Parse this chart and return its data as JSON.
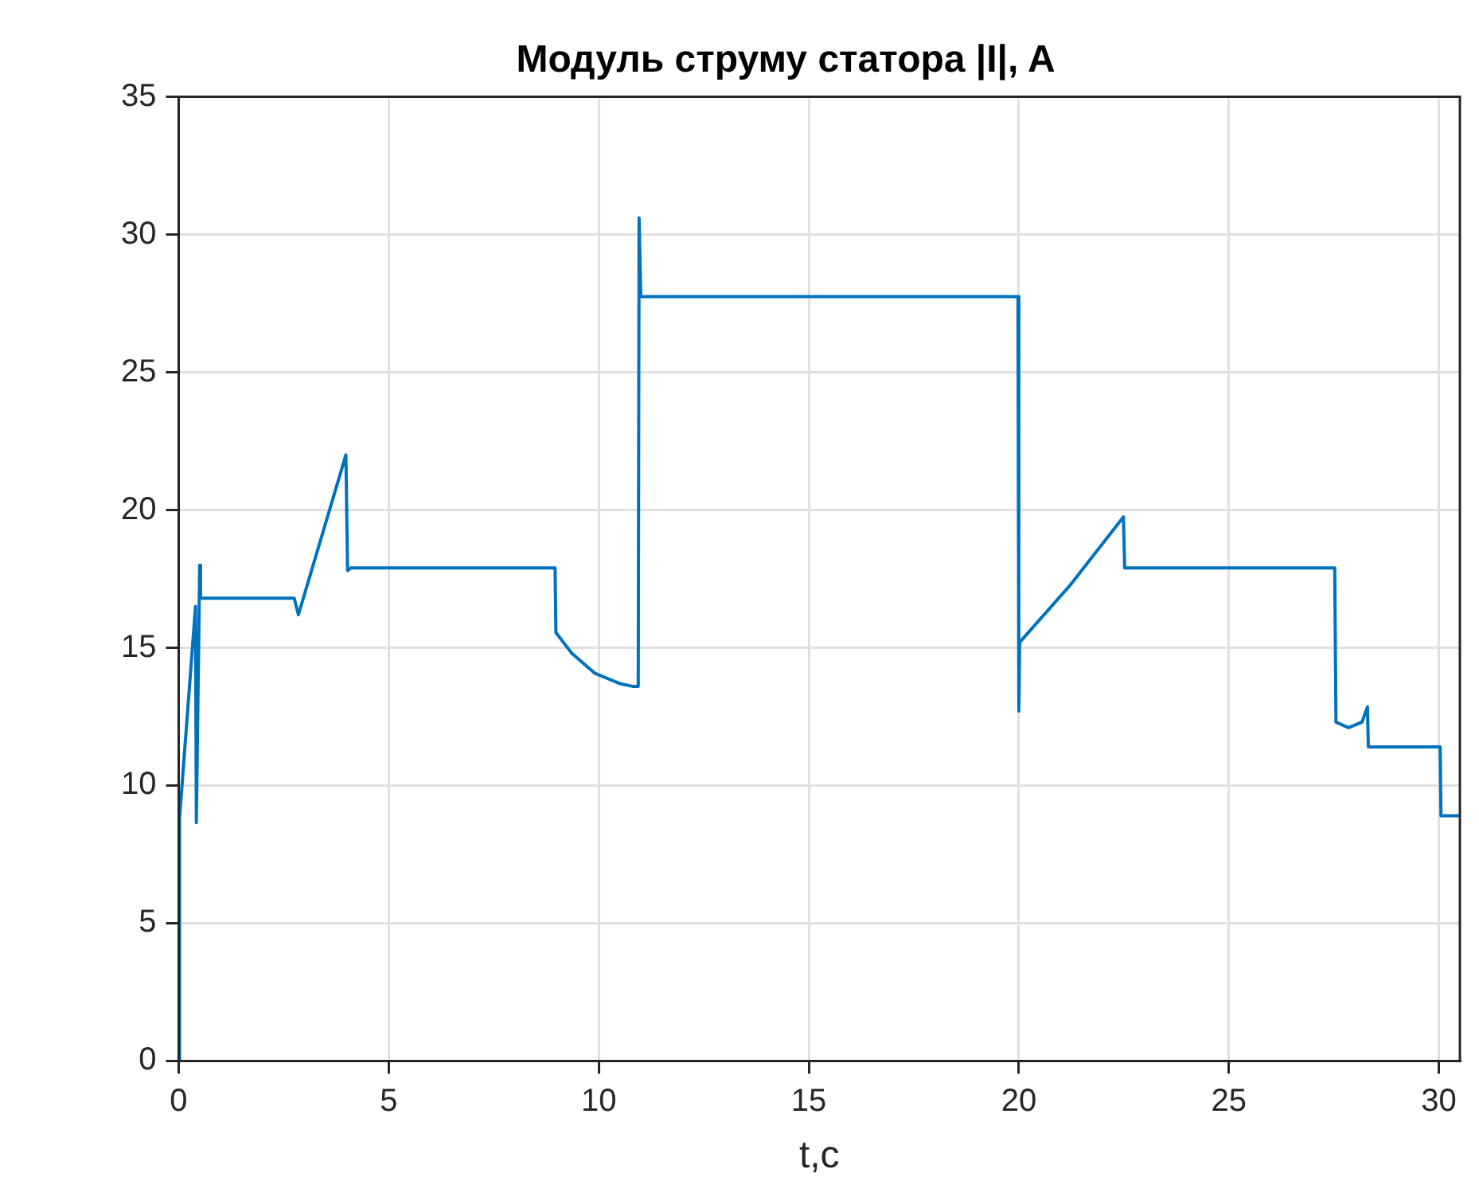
{
  "chart_data": {
    "type": "line",
    "title": "Модуль струму статора |I|, A",
    "xlabel": "t,c",
    "xlim": [
      0,
      30.5
    ],
    "xticks": [
      0,
      5,
      10,
      15,
      20,
      25,
      30
    ],
    "ylim": [
      0,
      35
    ],
    "yticks": [
      0,
      5,
      10,
      15,
      20,
      25,
      30,
      35
    ],
    "grid": true,
    "legend": false,
    "marker": "none",
    "line_style": "solid",
    "series": [
      {
        "color": "#0072bd",
        "x": [
          0,
          0.02,
          0.4,
          0.42,
          0.5,
          0.52,
          2.75,
          2.85,
          3.98,
          4.02,
          4.1,
          8.96,
          8.98,
          9.36,
          9.9,
          10.5,
          10.8,
          10.94,
          10.96,
          11.0,
          19.98,
          20.0,
          20.02,
          21.21,
          22.49,
          22.52,
          27.52,
          27.55,
          27.85,
          28.17,
          28.3,
          28.32,
          30.03,
          30.05,
          30.5
        ],
        "values": [
          0,
          8.8,
          16.5,
          8.65,
          18.0,
          16.8,
          16.8,
          16.2,
          22.0,
          17.8,
          17.9,
          17.9,
          15.55,
          14.8,
          14.08,
          13.7,
          13.6,
          13.6,
          30.6,
          27.75,
          27.75,
          12.7,
          15.2,
          17.25,
          19.75,
          17.9,
          17.9,
          12.3,
          12.1,
          12.3,
          12.85,
          11.4,
          11.4,
          8.9,
          8.9
        ]
      }
    ]
  }
}
